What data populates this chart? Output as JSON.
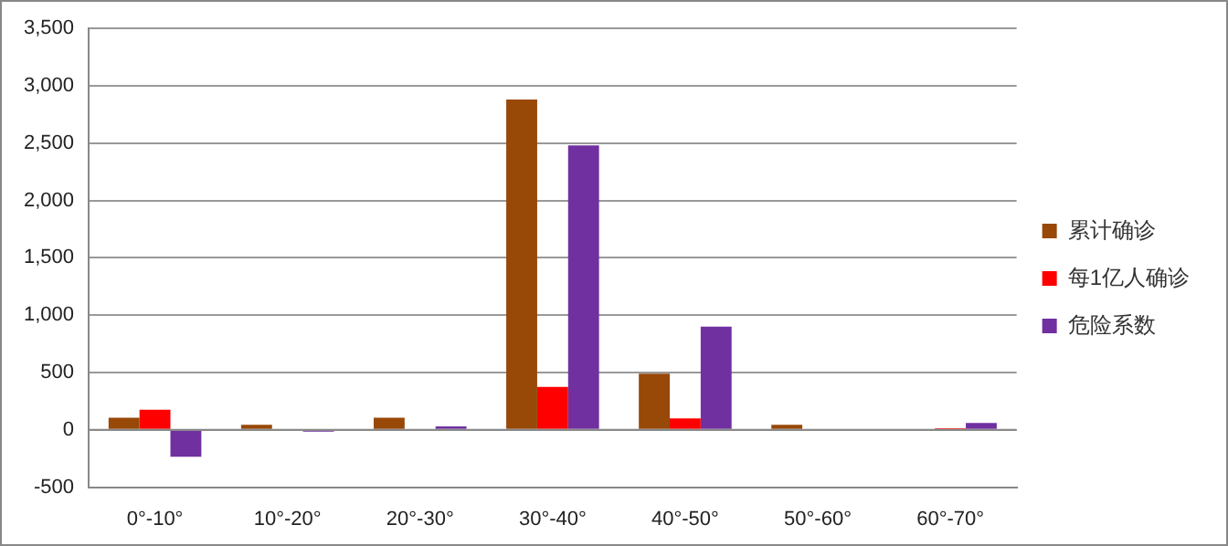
{
  "chart_data": {
    "type": "bar",
    "categories": [
      "0°-10°",
      "10°-20°",
      "20°-30°",
      "30°-40°",
      "40°-50°",
      "50°-60°",
      "60°-70°"
    ],
    "series": [
      {
        "name": "累计确诊",
        "color": "#984807",
        "values": [
          105,
          45,
          105,
          2880,
          490,
          45,
          0
        ]
      },
      {
        "name": "每1亿人确诊",
        "color": "#ff0000",
        "values": [
          175,
          0,
          0,
          375,
          100,
          0,
          15
        ]
      },
      {
        "name": "危险系数",
        "color": "#7030a0",
        "values": [
          -235,
          -15,
          30,
          2480,
          900,
          0,
          60
        ]
      }
    ],
    "ylim": [
      -500,
      3500
    ],
    "yticks": [
      {
        "value": -500,
        "label": "-500"
      },
      {
        "value": 0,
        "label": "0"
      },
      {
        "value": 500,
        "label": "500"
      },
      {
        "value": 1000,
        "label": "1,000"
      },
      {
        "value": 1500,
        "label": "1,500"
      },
      {
        "value": 2000,
        "label": "2,000"
      },
      {
        "value": 2500,
        "label": "2,500"
      },
      {
        "value": 3000,
        "label": "3,000"
      },
      {
        "value": 3500,
        "label": "3,500"
      }
    ],
    "grid": "y",
    "legend": "right"
  }
}
